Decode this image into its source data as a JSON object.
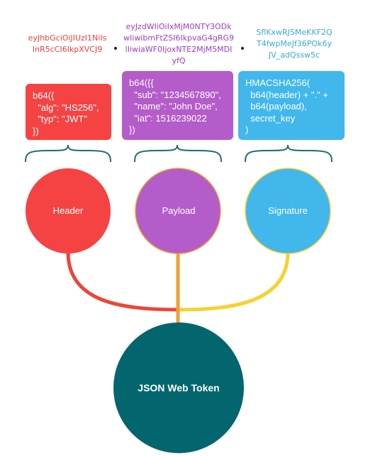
{
  "encoded": {
    "header": [
      "eyJhbGciOiJIUzI1NiIs",
      "InR5cCI6IkpXVCJ9"
    ],
    "payload": [
      "eyJzdWIiOiIxMjM0NTY3ODk",
      "wIiwibmFtZSI6IkpvaG4gRG9",
      "lIiwiaWF0IjoxNTE2MjM5MDI",
      "yfQ"
    ],
    "signature": [
      "SflKxwRJSMeKKF2Q",
      "T4fwpMeJf36POk6y",
      "JV_adQssw5c"
    ]
  },
  "code": {
    "header": [
      "b64({",
      "  \"alg\": \"HS256\",",
      "  \"typ\": \"JWT\"",
      "})"
    ],
    "payload": [
      "b64({{",
      "  \"sub\": \"1234567890\",",
      "  \"name\": \"John Doe\",",
      "  \"iat\": 1516239022",
      "})"
    ],
    "signature": [
      "HMACSHA256(",
      "  b64(header) + \".\" +",
      "  b64(payload),",
      "  secret_key",
      ")"
    ]
  },
  "labels": {
    "header": "Header",
    "payload": "Payload",
    "signature": "Signature",
    "jwt": "JSON Web Token"
  },
  "colors": {
    "header": "#f54343",
    "payload": "#b45cc9",
    "signature": "#41b7ec",
    "jwt": "#03656d",
    "header_text": "#e8433d",
    "payload_text": "#a13cc4",
    "signature_text": "#3aa9d9",
    "brace": "#1f6d74",
    "curve_header": "#ee4437",
    "curve_payload": "#f0a030",
    "curve_signature": "#f5d230"
  }
}
